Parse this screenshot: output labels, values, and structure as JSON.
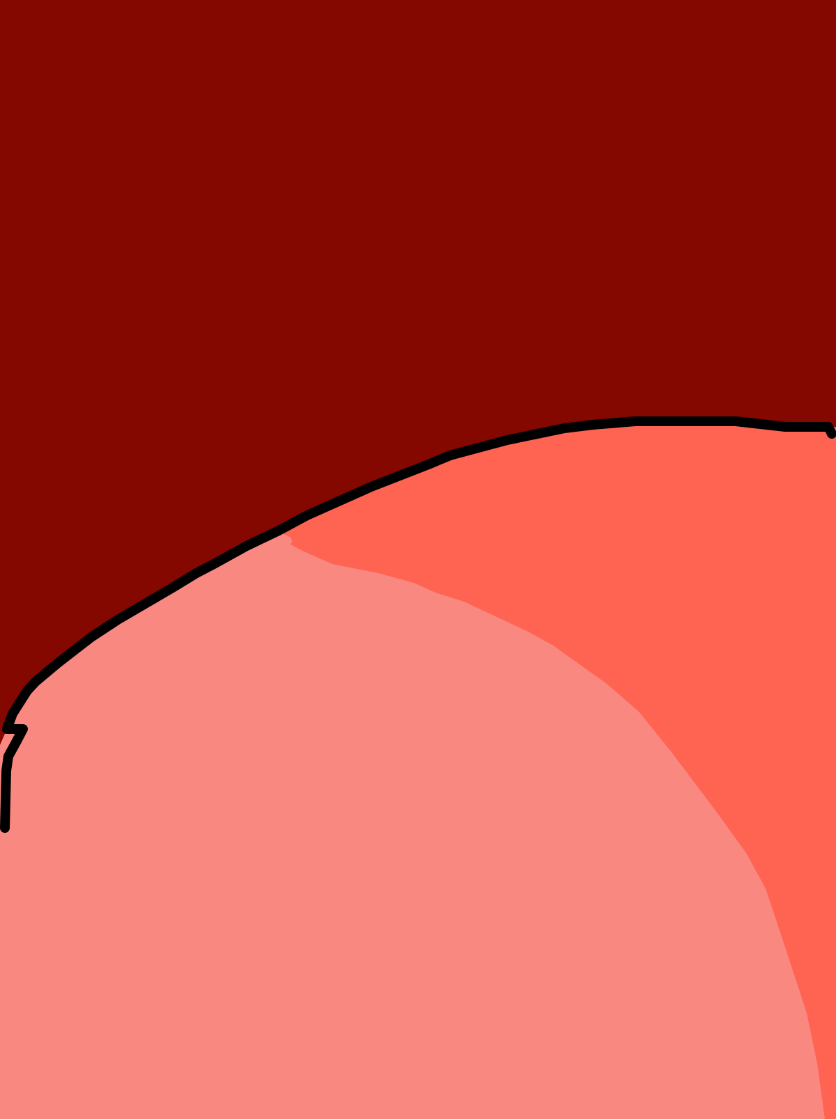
{
  "colors": {
    "background": "#840700",
    "coral_region": "#FF6352",
    "light_salmon_region": "#F98880",
    "stroke": "#000000"
  }
}
